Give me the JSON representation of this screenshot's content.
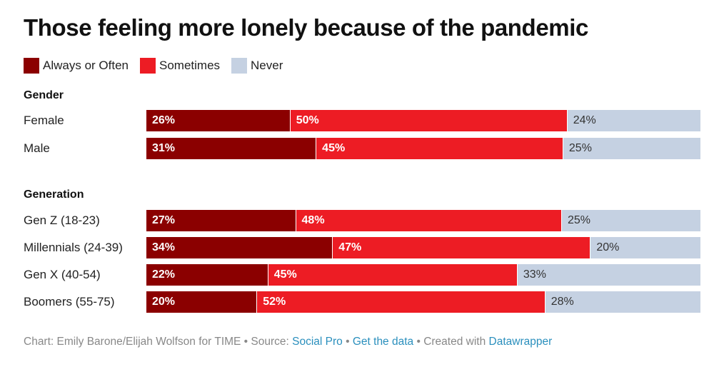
{
  "chart_data": {
    "type": "bar",
    "orientation": "horizontal",
    "stacked": true,
    "title": "Those feeling more lonely because of the pandemic",
    "xlim": [
      0,
      100
    ],
    "legend": [
      {
        "name": "Always or Often",
        "color": "#8b0000"
      },
      {
        "name": "Sometimes",
        "color": "#ed1c24"
      },
      {
        "name": "Never",
        "color": "#c5d1e2"
      }
    ],
    "groups": [
      {
        "label": "Gender",
        "rows": [
          {
            "label": "Female",
            "values": [
              26,
              50,
              24
            ]
          },
          {
            "label": "Male",
            "values": [
              31,
              45,
              25
            ]
          }
        ]
      },
      {
        "label": "Generation",
        "rows": [
          {
            "label": "Gen Z (18-23)",
            "values": [
              27,
              48,
              25
            ]
          },
          {
            "label": "Millennials (24-39)",
            "values": [
              34,
              47,
              20
            ]
          },
          {
            "label": "Gen X (40-54)",
            "values": [
              22,
              45,
              33
            ]
          },
          {
            "label": "Boomers (55-75)",
            "values": [
              20,
              52,
              28
            ]
          }
        ]
      }
    ]
  },
  "footer": {
    "credit": "Chart: Emily Barone/Elijah Wolfson for TIME • Source: ",
    "source": "Social Pro",
    "sep1": " • ",
    "get_data": "Get the data",
    "sep2": " • Created with ",
    "tool": "Datawrapper"
  }
}
